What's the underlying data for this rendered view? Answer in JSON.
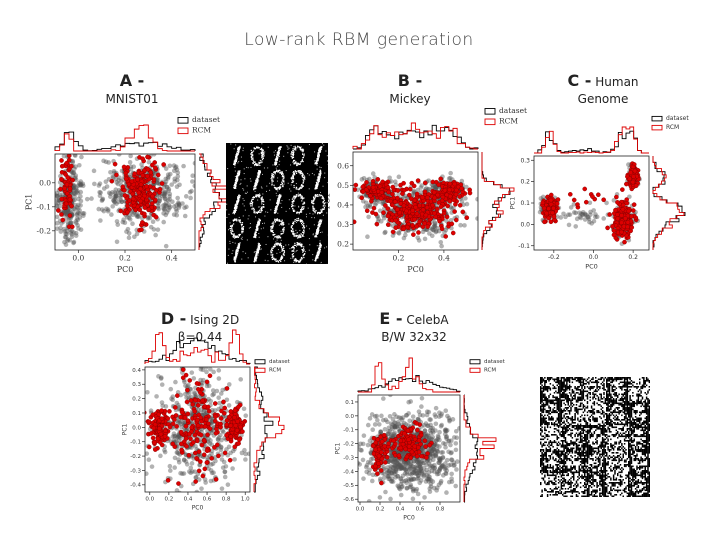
{
  "title": "Low-rank RBM generation",
  "colors": {
    "dataset": "#000000",
    "model": "#dd0000",
    "points_dataset": "#555555"
  },
  "legend": {
    "dataset": "dataset",
    "model": "RCM"
  },
  "panels": [
    {
      "id": "A",
      "letter": "A -",
      "name_lines": [
        "MNIST01"
      ]
    },
    {
      "id": "B",
      "letter": "B -",
      "name_lines": [
        "Mickey"
      ]
    },
    {
      "id": "C",
      "letter": "C -",
      "name_inline": "Human",
      "name_lines": [
        "Genome"
      ]
    },
    {
      "id": "D",
      "letter": "D -",
      "name_inline": "Ising 2D",
      "name_lines": [
        "β=0.44"
      ]
    },
    {
      "id": "E",
      "letter": "E -",
      "name_inline": "CelebA",
      "name_lines": [
        "B/W 32x32"
      ]
    }
  ],
  "chart_data": [
    {
      "id": "A",
      "type": "scatter",
      "xlabel": "PC0",
      "ylabel": "PC1",
      "xlim": [
        -0.1,
        0.5
      ],
      "ylim": [
        -0.28,
        0.12
      ],
      "xticks": [
        0.0,
        0.2,
        0.4
      ],
      "yticks": [
        0.0,
        -0.1,
        -0.2
      ],
      "xtick_labels": [
        "0.0",
        "0.2",
        "0.4"
      ],
      "ytick_labels": [
        "0.0",
        "-0.1",
        "-0.2"
      ],
      "legend": [
        "dataset",
        "RCM"
      ],
      "dataset_clusters": [
        {
          "cx": -0.04,
          "cy": -0.07,
          "rx": 0.05,
          "ry": 0.17,
          "n": 260
        },
        {
          "cx": 0.28,
          "cy": -0.04,
          "rx": 0.2,
          "ry": 0.15,
          "n": 420
        }
      ],
      "model_clusters": [
        {
          "cx": -0.05,
          "cy": -0.03,
          "rx": 0.025,
          "ry": 0.12,
          "n": 60
        },
        {
          "cx": 0.26,
          "cy": -0.04,
          "rx": 0.08,
          "ry": 0.12,
          "n": 220
        }
      ]
    },
    {
      "id": "B",
      "type": "scatter",
      "xlabel": "PC0",
      "ylabel": "PC1",
      "xlim": [
        0.0,
        0.55
      ],
      "ylim": [
        0.17,
        0.67
      ],
      "xticks": [
        0.2,
        0.4
      ],
      "yticks": [
        0.2,
        0.3,
        0.4,
        0.5,
        0.6
      ],
      "xtick_labels": [
        "0.2",
        "0.4"
      ],
      "ytick_labels": [
        "0.2",
        "0.3",
        "0.4",
        "0.5",
        "0.6"
      ],
      "legend": [
        "dataset",
        "RCM"
      ],
      "dataset_clusters": [
        {
          "cx": 0.1,
          "cy": 0.47,
          "rx": 0.08,
          "ry": 0.06,
          "n": 160
        },
        {
          "cx": 0.42,
          "cy": 0.47,
          "rx": 0.08,
          "ry": 0.06,
          "n": 160
        },
        {
          "cx": 0.27,
          "cy": 0.36,
          "rx": 0.18,
          "ry": 0.13,
          "n": 380
        }
      ],
      "model_clusters": [
        {
          "cx": 0.1,
          "cy": 0.47,
          "rx": 0.07,
          "ry": 0.05,
          "n": 90
        },
        {
          "cx": 0.42,
          "cy": 0.47,
          "rx": 0.07,
          "ry": 0.05,
          "n": 90
        },
        {
          "cx": 0.27,
          "cy": 0.37,
          "rx": 0.16,
          "ry": 0.12,
          "n": 260
        }
      ]
    },
    {
      "id": "C",
      "type": "scatter",
      "xlabel": "PC0",
      "ylabel": "PC1",
      "xlim": [
        -0.3,
        0.28
      ],
      "ylim": [
        -0.12,
        0.32
      ],
      "xticks": [
        -0.2,
        0.0,
        0.2
      ],
      "yticks": [
        -0.1,
        0.0,
        0.1,
        0.2,
        0.3
      ],
      "xtick_labels": [
        "-0.2",
        "0.0",
        "0.2"
      ],
      "ytick_labels": [
        "-0.1",
        "0.0",
        "0.1",
        "0.2",
        "0.3"
      ],
      "legend": [
        "dataset",
        "RCM"
      ],
      "dataset_clusters": [
        {
          "cx": -0.22,
          "cy": 0.08,
          "rx": 0.05,
          "ry": 0.05,
          "n": 90
        },
        {
          "cx": 0.2,
          "cy": 0.22,
          "rx": 0.03,
          "ry": 0.05,
          "n": 60
        },
        {
          "cx": 0.15,
          "cy": 0.02,
          "rx": 0.06,
          "ry": 0.09,
          "n": 110
        },
        {
          "cx": -0.05,
          "cy": 0.05,
          "rx": 0.1,
          "ry": 0.05,
          "n": 35
        }
      ],
      "model_clusters": [
        {
          "cx": -0.22,
          "cy": 0.08,
          "rx": 0.04,
          "ry": 0.05,
          "n": 110
        },
        {
          "cx": 0.2,
          "cy": 0.22,
          "rx": 0.025,
          "ry": 0.05,
          "n": 80
        },
        {
          "cx": 0.15,
          "cy": 0.02,
          "rx": 0.05,
          "ry": 0.08,
          "n": 180
        },
        {
          "cx": -0.02,
          "cy": 0.12,
          "rx": 0.12,
          "ry": 0.06,
          "n": 12
        }
      ]
    },
    {
      "id": "D",
      "type": "scatter",
      "xlabel": "PC0",
      "ylabel": "PC1",
      "xlim": [
        -0.05,
        1.05
      ],
      "ylim": [
        -0.45,
        0.42
      ],
      "xticks": [
        0.0,
        0.2,
        0.4,
        0.6,
        0.8,
        1.0
      ],
      "yticks": [
        -0.4,
        -0.3,
        -0.2,
        -0.1,
        0.0,
        0.1,
        0.2,
        0.3,
        0.4
      ],
      "xtick_labels": [
        "0.0",
        "0.2",
        "0.4",
        "0.6",
        "0.8",
        "1.0"
      ],
      "ytick_labels": [
        "-0.4",
        "-0.3",
        "-0.2",
        "-0.1",
        "0.0",
        "0.1",
        "0.2",
        "0.3",
        "0.4"
      ],
      "legend": [
        "dataset",
        "RCM"
      ],
      "dataset_clusters": [
        {
          "cx": 0.5,
          "cy": 0.0,
          "rx": 0.45,
          "ry": 0.38,
          "n": 520
        }
      ],
      "model_clusters": [
        {
          "cx": 0.1,
          "cy": 0.0,
          "rx": 0.09,
          "ry": 0.12,
          "n": 110
        },
        {
          "cx": 0.9,
          "cy": 0.0,
          "rx": 0.09,
          "ry": 0.12,
          "n": 110
        },
        {
          "cx": 0.5,
          "cy": 0.0,
          "rx": 0.35,
          "ry": 0.3,
          "n": 160
        }
      ]
    },
    {
      "id": "E",
      "type": "scatter",
      "xlabel": "PC0",
      "ylabel": "PC1",
      "xlim": [
        -0.02,
        1.0
      ],
      "ylim": [
        -0.62,
        0.15
      ],
      "xticks": [
        0.0,
        0.2,
        0.4,
        0.6,
        0.8
      ],
      "yticks": [
        0.1,
        0.0,
        -0.1,
        -0.2,
        -0.3,
        -0.4,
        -0.5,
        -0.6
      ],
      "xtick_labels": [
        "0.0",
        "0.2",
        "0.4",
        "0.6",
        "0.8"
      ],
      "ytick_labels": [
        "0.1",
        "0.0",
        "-0.1",
        "-0.2",
        "-0.3",
        "-0.4",
        "-0.5",
        "-0.6"
      ],
      "legend": [
        "dataset",
        "RCM"
      ],
      "dataset_clusters": [
        {
          "cx": 0.5,
          "cy": -0.27,
          "rx": 0.45,
          "ry": 0.26,
          "n": 900
        }
      ],
      "model_clusters": [
        {
          "cx": 0.2,
          "cy": -0.28,
          "rx": 0.1,
          "ry": 0.15,
          "n": 70
        },
        {
          "cx": 0.5,
          "cy": -0.2,
          "rx": 0.18,
          "ry": 0.12,
          "n": 120
        }
      ]
    }
  ]
}
